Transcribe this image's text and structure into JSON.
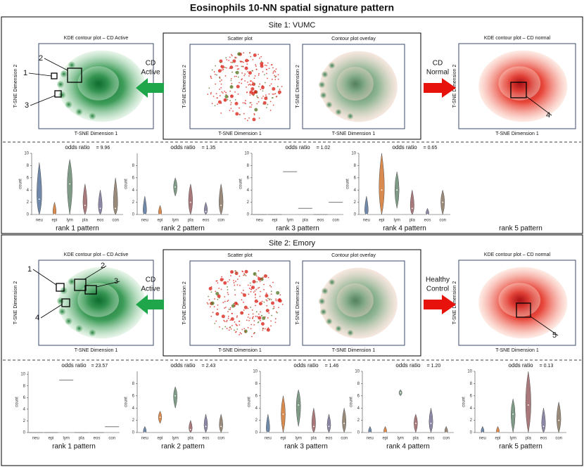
{
  "title": "Eosinophils 10-NN spatial signature pattern",
  "sites": [
    {
      "header": "Site 1: VUMC",
      "kde_active": {
        "title": "KDE contour plot – CD Active",
        "xlabel": "T-SNE Dimension 1",
        "ylabel": "T-SNE Dimension 2",
        "markers": [
          "1",
          "2",
          "3"
        ]
      },
      "arrow_left": [
        "CD",
        "Active"
      ],
      "scatter": {
        "title": "Scatter plot",
        "xlabel": "T-SNE Dimension 1",
        "ylabel": "T-SNE Dimension 2"
      },
      "overlay": {
        "title": "Contour plot overlay",
        "xlabel": "T-SNE Dimension 1",
        "ylabel": "T-SNE Dimension 2"
      },
      "arrow_right": [
        "CD",
        "Normal"
      ],
      "kde_normal": {
        "title": "KDE contour plot – CD normal",
        "xlabel": "T-SNE Dimension 1",
        "ylabel": "T-SNE Dimension 2",
        "markers": [
          "4"
        ]
      },
      "patterns": [
        {
          "rank": "rank 1 pattern",
          "odds_label": "odds ratio",
          "odds": "= 9.96",
          "ylabel": "count",
          "categories": [
            "neu",
            "epi",
            "lym",
            "pla",
            "eos",
            "con"
          ],
          "ylim": [
            0,
            10
          ],
          "yticks": [
            0,
            2,
            4,
            6,
            8,
            10
          ],
          "values": [
            [
              0,
              2.5,
              8.5
            ],
            [
              0,
              0,
              2
            ],
            [
              0,
              5,
              9
            ],
            [
              0,
              1.5,
              5
            ],
            [
              0,
              1,
              4
            ],
            [
              0,
              1,
              6
            ]
          ]
        },
        {
          "rank": "rank 2 pattern",
          "odds_label": "odds ratio",
          "odds": "= 1.35",
          "ylabel": "count",
          "categories": [
            "neu",
            "epi",
            "lym",
            "pla",
            "eos",
            "con"
          ],
          "ylim": [
            0,
            10
          ],
          "yticks": [
            0,
            2,
            4,
            6,
            8
          ],
          "values": [
            [
              0,
              0,
              3
            ],
            [
              0,
              0,
              1.5
            ],
            [
              3,
              4.5,
              6
            ],
            [
              0,
              2,
              5
            ],
            [
              0,
              0.5,
              2
            ],
            [
              0,
              1.5,
              5
            ]
          ]
        },
        {
          "rank": "rank 3 pattern",
          "odds_label": "odds ratio",
          "odds": "= 1.02",
          "ylabel": "count",
          "categories": [
            "neu",
            "epi",
            "lym",
            "pla",
            "eos",
            "con"
          ],
          "ylim": [
            0,
            10
          ],
          "yticks": [
            0,
            2,
            4,
            6,
            8,
            10
          ],
          "values": [
            [
              0,
              0,
              0
            ],
            [
              0,
              0,
              0
            ],
            [
              7,
              7,
              7
            ],
            [
              1,
              1,
              1
            ],
            [
              0,
              0,
              0
            ],
            [
              2,
              2,
              2
            ]
          ]
        },
        {
          "rank": "rank 4 pattern",
          "odds_label": "odds ratio",
          "odds": "= 0.65",
          "ylabel": "count",
          "categories": [
            "neu",
            "epi",
            "lym",
            "pla",
            "eos",
            "con"
          ],
          "ylim": [
            0,
            10
          ],
          "yticks": [
            0,
            2,
            4,
            6,
            8,
            10
          ],
          "values": [
            [
              0,
              0,
              3
            ],
            [
              0,
              4,
              10
            ],
            [
              1,
              4,
              7
            ],
            [
              0,
              1,
              4
            ],
            [
              0,
              0,
              1
            ],
            [
              0,
              2,
              4
            ]
          ]
        },
        {
          "rank": "rank 5 pattern"
        }
      ]
    },
    {
      "header": "Site 2: Emory",
      "kde_active": {
        "title": "KDE contour plot – CD Active",
        "xlabel": "T-SNE Dimension 1",
        "ylabel": "T-SNE Dimension 2",
        "markers": [
          "1",
          "2",
          "3",
          "4"
        ]
      },
      "arrow_left": [
        "CD",
        "Active"
      ],
      "scatter": {
        "title": "Scatter plot",
        "xlabel": "T-SNE Dimension 1",
        "ylabel": "T-SNE Dimension 2"
      },
      "overlay": {
        "title": "Contour plot overlay",
        "xlabel": "T-SNE Dimension 1",
        "ylabel": "T-SNE Dimension 2"
      },
      "arrow_right": [
        "Healthy",
        "Control"
      ],
      "kde_normal": {
        "title": "KDE contour plot – CD normal",
        "xlabel": "T-SNE Dimension 1",
        "ylabel": "T-SNE Dimension 2",
        "markers": [
          "5"
        ]
      },
      "patterns": [
        {
          "rank": "rank 1 pattern",
          "odds_label": "odds ratio",
          "odds": "= 23.57",
          "ylabel": "count",
          "categories": [
            "neu",
            "epi",
            "lym",
            "pla",
            "eos",
            "con"
          ],
          "ylim": [
            0,
            10.5
          ],
          "yticks": [
            0,
            2,
            4,
            6,
            8,
            10
          ],
          "values": [
            [
              0,
              0,
              0
            ],
            [
              0,
              0,
              0
            ],
            [
              9,
              9,
              9
            ],
            [
              0,
              0,
              0
            ],
            [
              0,
              0,
              0
            ],
            [
              1,
              1,
              1
            ]
          ]
        },
        {
          "rank": "rank 2 pattern",
          "odds_label": "odds ratio",
          "odds": "= 2.43",
          "ylabel": "count",
          "categories": [
            "neu",
            "epi",
            "lym",
            "pla",
            "eos",
            "con"
          ],
          "ylim": [
            0,
            10
          ],
          "yticks": [
            0,
            2,
            4,
            6,
            8
          ],
          "values": [
            [
              0,
              0,
              1
            ],
            [
              1.5,
              2.5,
              3.5
            ],
            [
              4,
              6,
              7.5
            ],
            [
              0,
              0.5,
              2
            ],
            [
              0,
              1,
              3
            ],
            [
              0,
              1,
              3
            ]
          ]
        },
        {
          "rank": "rank 3 pattern",
          "odds_label": "odds ratio",
          "odds": "= 1.46",
          "ylabel": "count",
          "categories": [
            "neu",
            "epi",
            "lym",
            "pla",
            "eos",
            "con"
          ],
          "ylim": [
            0,
            10
          ],
          "yticks": [
            0,
            2,
            4,
            6,
            8,
            10
          ],
          "values": [
            [
              0,
              0,
              3
            ],
            [
              0,
              3,
              6
            ],
            [
              1,
              4.5,
              7
            ],
            [
              0,
              1,
              4
            ],
            [
              0,
              1,
              3
            ],
            [
              0,
              1.5,
              4
            ]
          ]
        },
        {
          "rank": "rank 4 pattern",
          "odds_label": "odds ratio",
          "odds": "= 1.20",
          "ylabel": "count",
          "categories": [
            "neu",
            "epi",
            "lym",
            "pla",
            "eos",
            "con"
          ],
          "ylim": [
            0,
            10
          ],
          "yticks": [
            0,
            2,
            4,
            6,
            8,
            10
          ],
          "values": [
            [
              0,
              0,
              1
            ],
            [
              0,
              0,
              1
            ],
            [
              6,
              6.5,
              7
            ],
            [
              0,
              1.5,
              3
            ],
            [
              0,
              1.5,
              4
            ],
            [
              0,
              0,
              1
            ]
          ]
        },
        {
          "rank": "rank 5 pattern",
          "odds_label": "odds ratio",
          "odds": "= 0.13",
          "ylabel": "count",
          "categories": [
            "neu",
            "epi",
            "lym",
            "pla",
            "eos",
            "con"
          ],
          "ylim": [
            0,
            10
          ],
          "yticks": [
            0,
            2,
            4,
            6,
            8,
            10
          ],
          "values": [
            [
              0,
              0,
              1
            ],
            [
              0,
              0,
              1
            ],
            [
              0,
              3,
              5.5
            ],
            [
              0,
              4.5,
              10
            ],
            [
              0,
              1,
              4
            ],
            [
              0,
              2,
              5
            ]
          ]
        }
      ]
    }
  ]
}
